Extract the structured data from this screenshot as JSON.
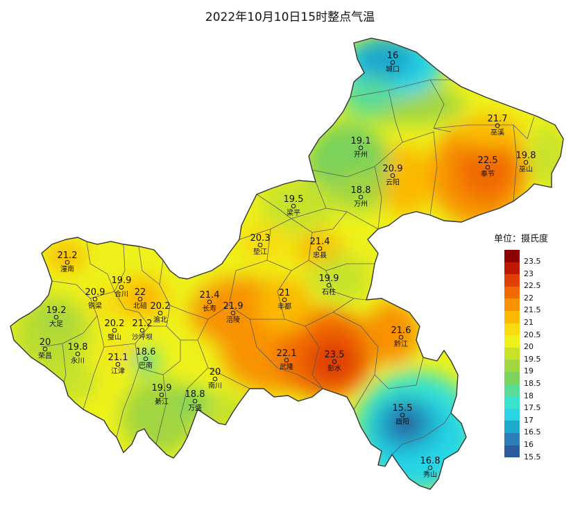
{
  "title": "2022年10月10日15时整点气温",
  "legend": {
    "title": "单位：摄氏度",
    "items": [
      {
        "label": "23.5",
        "color": "#8b0000"
      },
      {
        "label": "23",
        "color": "#c01800"
      },
      {
        "label": "22.5",
        "color": "#e04000"
      },
      {
        "label": "22",
        "color": "#f06a00"
      },
      {
        "label": "21.5",
        "color": "#f89200"
      },
      {
        "label": "21",
        "color": "#fbb900"
      },
      {
        "label": "20.5",
        "color": "#f8dc10"
      },
      {
        "label": "20",
        "color": "#eef21a"
      },
      {
        "label": "19.5",
        "color": "#c8e22a"
      },
      {
        "label": "19",
        "color": "#a2d640"
      },
      {
        "label": "18.5",
        "color": "#7cd25a"
      },
      {
        "label": "18",
        "color": "#5adc96"
      },
      {
        "label": "17.5",
        "color": "#3ae4cc"
      },
      {
        "label": "17",
        "color": "#28d6e6"
      },
      {
        "label": "16.5",
        "color": "#1ea8cc"
      },
      {
        "label": "16",
        "color": "#2b7fb8"
      },
      {
        "label": "15.5",
        "color": "#2c5a9a"
      }
    ]
  },
  "stations": [
    {
      "name": "城口",
      "value": "16"
    },
    {
      "name": "巫溪",
      "value": "21.7"
    },
    {
      "name": "开州",
      "value": "19.1"
    },
    {
      "name": "奉节",
      "value": "22.5"
    },
    {
      "name": "巫山",
      "value": "19.8"
    },
    {
      "name": "云阳",
      "value": "20.9"
    },
    {
      "name": "万州",
      "value": "18.8"
    },
    {
      "name": "梁平",
      "value": "19.5"
    },
    {
      "name": "垫江",
      "value": "20.3"
    },
    {
      "name": "忠县",
      "value": "21.4"
    },
    {
      "name": "石柱",
      "value": "19.9"
    },
    {
      "name": "丰都",
      "value": "21"
    },
    {
      "name": "潼南",
      "value": "21.2"
    },
    {
      "name": "合川",
      "value": "19.9"
    },
    {
      "name": "铜梁",
      "value": "20.9"
    },
    {
      "name": "北碚",
      "value": "22"
    },
    {
      "name": "渝北",
      "value": "20.2"
    },
    {
      "name": "长寿",
      "value": "21.4"
    },
    {
      "name": "涪陵",
      "value": "21.9"
    },
    {
      "name": "大足",
      "value": "19.2"
    },
    {
      "name": "璧山",
      "value": "20.2"
    },
    {
      "name": "沙坪坝",
      "value": "21.2"
    },
    {
      "name": "荣昌",
      "value": "20"
    },
    {
      "name": "永川",
      "value": "19.8"
    },
    {
      "name": "江津",
      "value": "21.1"
    },
    {
      "name": "巴南",
      "value": "18.6"
    },
    {
      "name": "南川",
      "value": "20"
    },
    {
      "name": "武隆",
      "value": "22.1"
    },
    {
      "name": "彭水",
      "value": "23.5"
    },
    {
      "name": "黔江",
      "value": "21.6"
    },
    {
      "name": "綦江",
      "value": "19.9"
    },
    {
      "name": "万盛",
      "value": "18.8"
    },
    {
      "name": "酉阳",
      "value": "15.5"
    },
    {
      "name": "秀山",
      "value": "16.8"
    }
  ]
}
